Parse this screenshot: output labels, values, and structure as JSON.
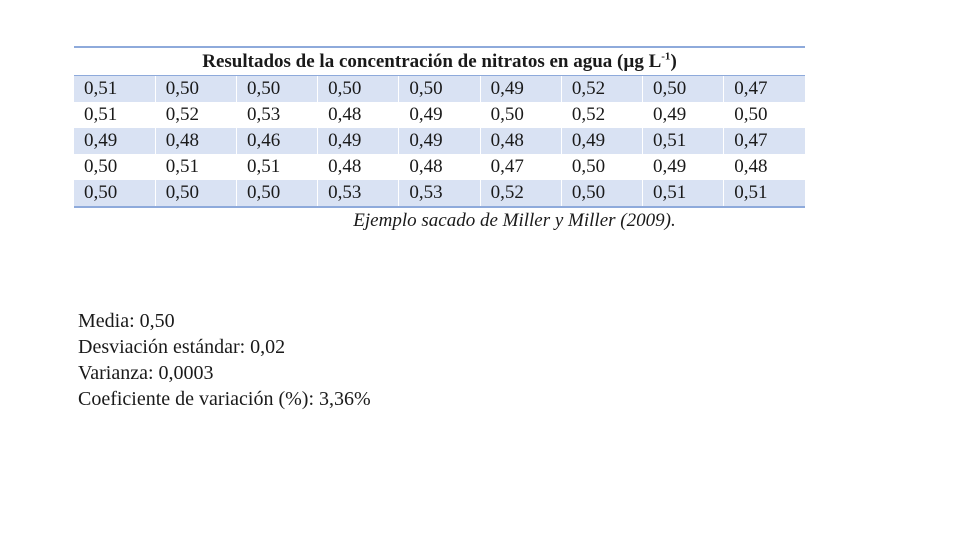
{
  "table": {
    "title": "Resultados de la concentración de nitratos en agua (µg L",
    "title_superscript": "-1",
    "title_close": ")",
    "rows": [
      [
        "0,51",
        "0,50",
        "0,50",
        "0,50",
        "0,50",
        "0,49",
        "0,52",
        "0,50",
        "0,47"
      ],
      [
        "0,51",
        "0,52",
        "0,53",
        "0,48",
        "0,49",
        "0,50",
        "0,52",
        "0,49",
        "0,50"
      ],
      [
        "0,49",
        "0,48",
        "0,46",
        "0,49",
        "0,49",
        "0,48",
        "0,49",
        "0,51",
        "0,47"
      ],
      [
        "0,50",
        "0,51",
        "0,51",
        "0,48",
        "0,48",
        "0,47",
        "0,50",
        "0,49",
        "0,48"
      ],
      [
        "0,50",
        "0,50",
        "0,50",
        "0,53",
        "0,53",
        "0,52",
        "0,50",
        "0,51",
        "0,51"
      ]
    ],
    "caption": "Ejemplo sacado de Miller y Miller (2009).",
    "colors": {
      "shaded_row": "#d9e2f3",
      "border": "#8eaadb"
    }
  },
  "stats": {
    "media": "Media: 0,50",
    "desviacion": "Desviación estándar: 0,02",
    "varianza": "Varianza: 0,0003",
    "coeficiente": "Coeficiente de variación (%): 3,36%"
  }
}
